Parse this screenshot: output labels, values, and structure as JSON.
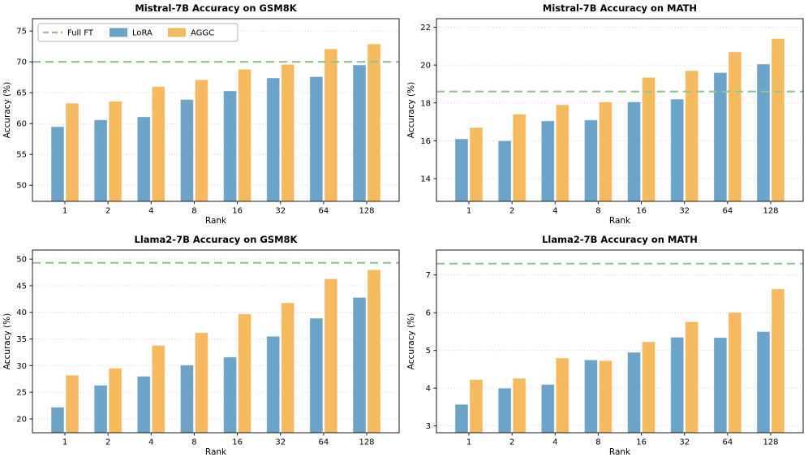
{
  "figure": {
    "background": "#ffffff",
    "full_ft_label": "Full FT",
    "colors": {
      "lora": "#6ba3c9",
      "aggc": "#f5ba5d",
      "full_ft": "#94c591",
      "grid": "#d2d2d2",
      "spine": "#1a1a1a",
      "legend_border": "#b3b3b3",
      "text": "#000000"
    }
  },
  "chart_data": [
    {
      "type": "bar",
      "title": "Mistral-7B Accuracy on GSM8K",
      "xlabel": "Rank",
      "ylabel": "Accuracy (%)",
      "categories": [
        "1",
        "2",
        "4",
        "8",
        "16",
        "32",
        "64",
        "128"
      ],
      "series": [
        {
          "name": "LoRA",
          "values": [
            59.5,
            60.6,
            61.1,
            63.9,
            65.3,
            67.4,
            67.6,
            69.5
          ]
        },
        {
          "name": "AGGC",
          "values": [
            63.3,
            63.6,
            66.0,
            67.1,
            68.8,
            69.6,
            72.1,
            72.9
          ]
        }
      ],
      "full_ft_value": 70.0,
      "ylim": [
        47.4,
        77.0
      ],
      "yticks": [
        50,
        55,
        60,
        65,
        70,
        75
      ],
      "grid": true,
      "legend_visible": true,
      "legend_position": "upper left"
    },
    {
      "type": "bar",
      "title": "Mistral-7B Accuracy on MATH",
      "xlabel": "Rank",
      "ylabel": "Accuracy (%)",
      "categories": [
        "1",
        "2",
        "4",
        "8",
        "16",
        "32",
        "64",
        "128"
      ],
      "series": [
        {
          "name": "LoRA",
          "values": [
            16.1,
            16.0,
            17.05,
            17.1,
            18.05,
            18.2,
            19.6,
            20.05
          ]
        },
        {
          "name": "AGGC",
          "values": [
            16.7,
            17.4,
            17.9,
            18.05,
            19.35,
            19.7,
            20.7,
            21.4
          ]
        }
      ],
      "full_ft_value": 18.6,
      "ylim": [
        12.8,
        22.45
      ],
      "yticks": [
        14,
        16,
        18,
        20,
        22
      ],
      "grid": true,
      "legend_visible": false,
      "legend_position": "none"
    },
    {
      "type": "bar",
      "title": "Llama2-7B Accuracy on GSM8K",
      "xlabel": "Rank",
      "ylabel": "Accuracy (%)",
      "categories": [
        "1",
        "2",
        "4",
        "8",
        "16",
        "32",
        "64",
        "128"
      ],
      "series": [
        {
          "name": "LoRA",
          "values": [
            22.2,
            26.3,
            28.0,
            30.1,
            31.6,
            35.5,
            38.9,
            42.8
          ]
        },
        {
          "name": "AGGC",
          "values": [
            28.2,
            29.5,
            33.8,
            36.2,
            39.7,
            41.8,
            46.3,
            48.0
          ]
        }
      ],
      "full_ft_value": 49.3,
      "ylim": [
        17.4,
        51.7
      ],
      "yticks": [
        20,
        25,
        30,
        35,
        40,
        45,
        50
      ],
      "grid": true,
      "legend_visible": false,
      "legend_position": "none"
    },
    {
      "type": "bar",
      "title": "Llama2-7B Accuracy on MATH",
      "xlabel": "Rank",
      "ylabel": "Accuracy (%)",
      "categories": [
        "1",
        "2",
        "4",
        "8",
        "16",
        "32",
        "64",
        "128"
      ],
      "series": [
        {
          "name": "LoRA",
          "values": [
            3.57,
            4.0,
            4.1,
            4.75,
            4.95,
            5.35,
            5.34,
            5.5
          ]
        },
        {
          "name": "AGGC",
          "values": [
            4.23,
            4.26,
            4.8,
            4.73,
            5.23,
            5.76,
            6.01,
            6.63
          ]
        }
      ],
      "full_ft_value": 7.3,
      "ylim": [
        2.82,
        7.66
      ],
      "yticks": [
        3,
        4,
        5,
        6,
        7
      ],
      "grid": true,
      "legend_visible": false,
      "legend_position": "none"
    }
  ]
}
